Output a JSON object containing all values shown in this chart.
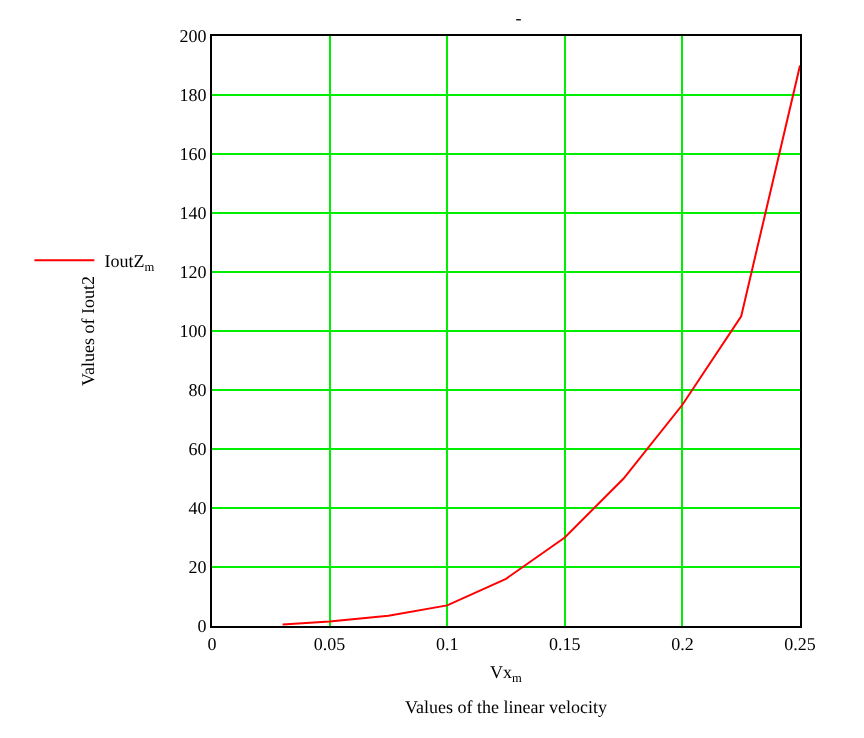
{
  "chart_data": {
    "type": "line",
    "title": "-",
    "xlabel": "Values of the linear velocity",
    "annotations": [
      "Vx$_{m}$"
    ],
    "ylabel": "Values of Iout2",
    "x": [
      0.03,
      0.05,
      0.075,
      0.1,
      0.125,
      0.15,
      0.175,
      0.2,
      0.225,
      0.25
    ],
    "series": [
      {
        "name": "IoutZ$_{m}$",
        "color": "#ff0000",
        "values": [
          0.5,
          1.5,
          3.5,
          7,
          16,
          30,
          50,
          75,
          105,
          190
        ]
      }
    ],
    "xlim": [
      0,
      0.25
    ],
    "xticks": [
      0,
      0.05,
      0.1,
      0.15,
      0.2,
      0.25
    ],
    "ylim": [
      0,
      200
    ],
    "yticks": [
      0,
      20,
      40,
      60,
      80,
      100,
      120,
      140,
      160,
      180,
      200
    ],
    "grid": true,
    "legend": "left",
    "marker": "none",
    "line_style": "solid"
  }
}
